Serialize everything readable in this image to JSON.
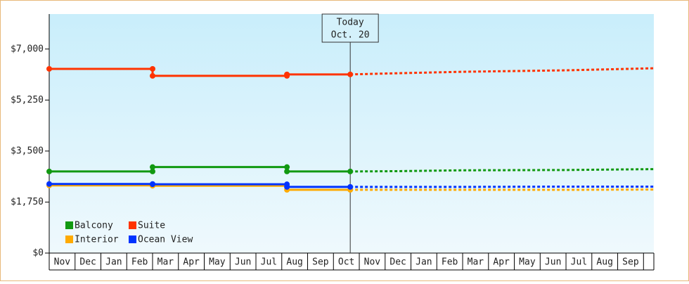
{
  "chart_data": {
    "type": "line",
    "categories": [
      "Nov",
      "Dec",
      "Jan",
      "Feb",
      "Mar",
      "Apr",
      "May",
      "Jun",
      "Jul",
      "Aug",
      "Sep",
      "Oct",
      "Nov",
      "Dec",
      "Jan",
      "Feb",
      "Mar",
      "Apr",
      "May",
      "Jun",
      "Jul",
      "Aug",
      "Sep"
    ],
    "x": [
      0,
      4,
      4,
      9.2,
      9.2,
      11.65
    ],
    "forecast_x": [
      11.65,
      13.5,
      16,
      20,
      23.4
    ],
    "xlim": [
      0,
      23.4
    ],
    "ylim": [
      0,
      8200
    ],
    "yticks": [
      {
        "value": 0,
        "label": "$0"
      },
      {
        "value": 1750,
        "label": "$1,750"
      },
      {
        "value": 3500,
        "label": "$3,500"
      },
      {
        "value": 5250,
        "label": "$5,250"
      },
      {
        "value": 7000,
        "label": "$7,000"
      }
    ],
    "annotation": {
      "x": 11.65,
      "lines": [
        "Today",
        "Oct. 20"
      ]
    },
    "series": [
      {
        "name": "Balcony",
        "color": "#119911",
        "values": [
          2800,
          2800,
          2950,
          2950,
          2800,
          2800
        ],
        "forecast": [
          2800,
          2810,
          2840,
          2850,
          2880
        ]
      },
      {
        "name": "Suite",
        "color": "#ff3300",
        "values": [
          6320,
          6320,
          6080,
          6080,
          6130,
          6130
        ],
        "forecast": [
          6130,
          6170,
          6220,
          6270,
          6340
        ]
      },
      {
        "name": "Interior",
        "color": "#ffaa00",
        "values": [
          2320,
          2320,
          2310,
          2310,
          2170,
          2170
        ],
        "forecast": [
          2170,
          2170,
          2170,
          2170,
          2180
        ]
      },
      {
        "name": "Ocean View",
        "color": "#0033ff",
        "values": [
          2370,
          2370,
          2360,
          2360,
          2270,
          2270
        ],
        "forecast": [
          2270,
          2270,
          2270,
          2280,
          2280
        ]
      }
    ]
  }
}
